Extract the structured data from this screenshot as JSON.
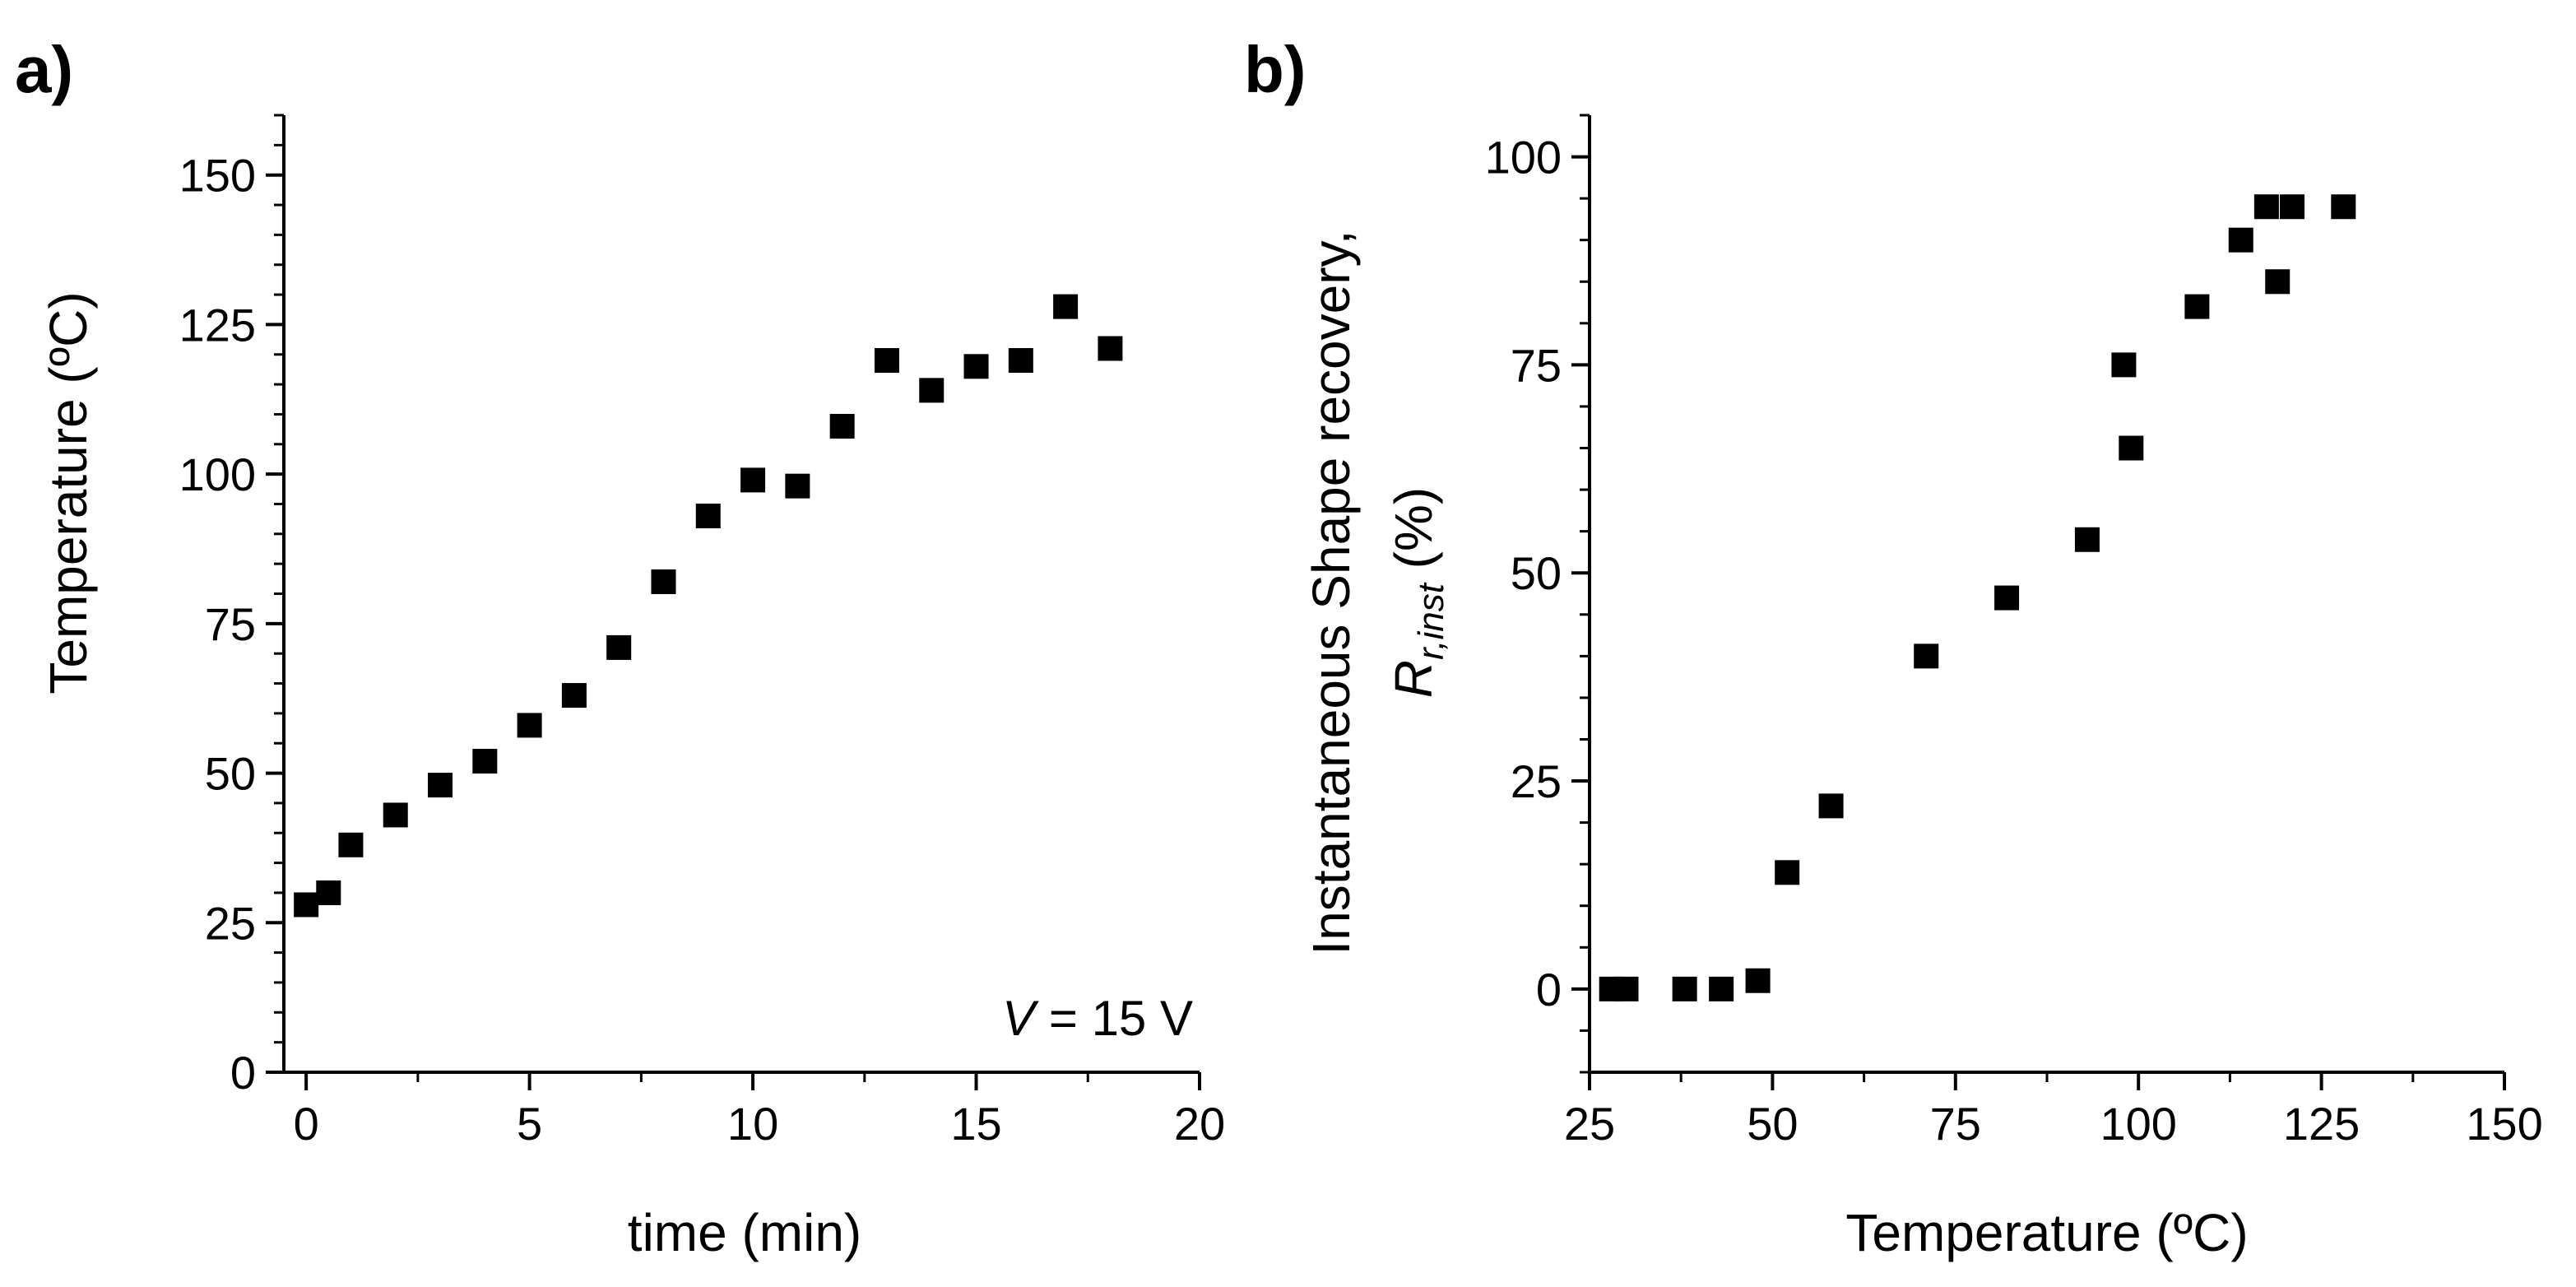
{
  "chart_data": [
    {
      "panel_label": "a)",
      "type": "scatter",
      "xlabel": "time (min)",
      "ylabel": "Temperature (ºC)",
      "xlim": [
        -0.5,
        20
      ],
      "ylim": [
        0,
        160
      ],
      "xticks": [
        0,
        5,
        10,
        15,
        20
      ],
      "xtick_labels": [
        "0",
        "5",
        "10",
        "15",
        "20"
      ],
      "yticks": [
        0,
        25,
        50,
        75,
        100,
        125,
        150
      ],
      "ytick_labels": [
        "0",
        "25",
        "50",
        "75",
        "100",
        "125",
        "150"
      ],
      "annotation": {
        "italic": "V",
        "rest": " = 15 V"
      },
      "marker": "square",
      "color": "#000000",
      "x": [
        0,
        0.5,
        1,
        2,
        3,
        4,
        5,
        6,
        7,
        8,
        9,
        10,
        11,
        12,
        13,
        14,
        15,
        16,
        17,
        18
      ],
      "y": [
        28,
        30,
        38,
        43,
        48,
        52,
        58,
        63,
        71,
        82,
        93,
        99,
        98,
        108,
        119,
        114,
        118,
        119,
        128,
        121
      ]
    },
    {
      "panel_label": "b)",
      "type": "scatter",
      "xlabel": "Temperature (ºC)",
      "ylabel_line1": "Instantaneous Shape recovery,",
      "ylabel_line2_symbol": "R",
      "ylabel_line2_subscript": "r,inst",
      "ylabel_line2_unit": " (%)",
      "xlim": [
        25,
        150
      ],
      "ylim": [
        -10,
        105
      ],
      "xticks": [
        25,
        50,
        75,
        100,
        125,
        150
      ],
      "xtick_labels": [
        "25",
        "50",
        "75",
        "100",
        "125",
        "150"
      ],
      "yticks": [
        0,
        25,
        50,
        75,
        100
      ],
      "ytick_labels": [
        "0",
        "25",
        "50",
        "75",
        "100"
      ],
      "marker": "square",
      "color": "#000000",
      "x": [
        28,
        30,
        38,
        43,
        48,
        52,
        58,
        71,
        82,
        93,
        98,
        99,
        108,
        114,
        117.5,
        119,
        121,
        128
      ],
      "y": [
        0,
        0,
        0,
        0,
        1,
        14,
        22,
        40,
        47,
        54,
        75,
        65,
        82,
        90,
        94,
        85,
        94,
        94
      ]
    }
  ]
}
